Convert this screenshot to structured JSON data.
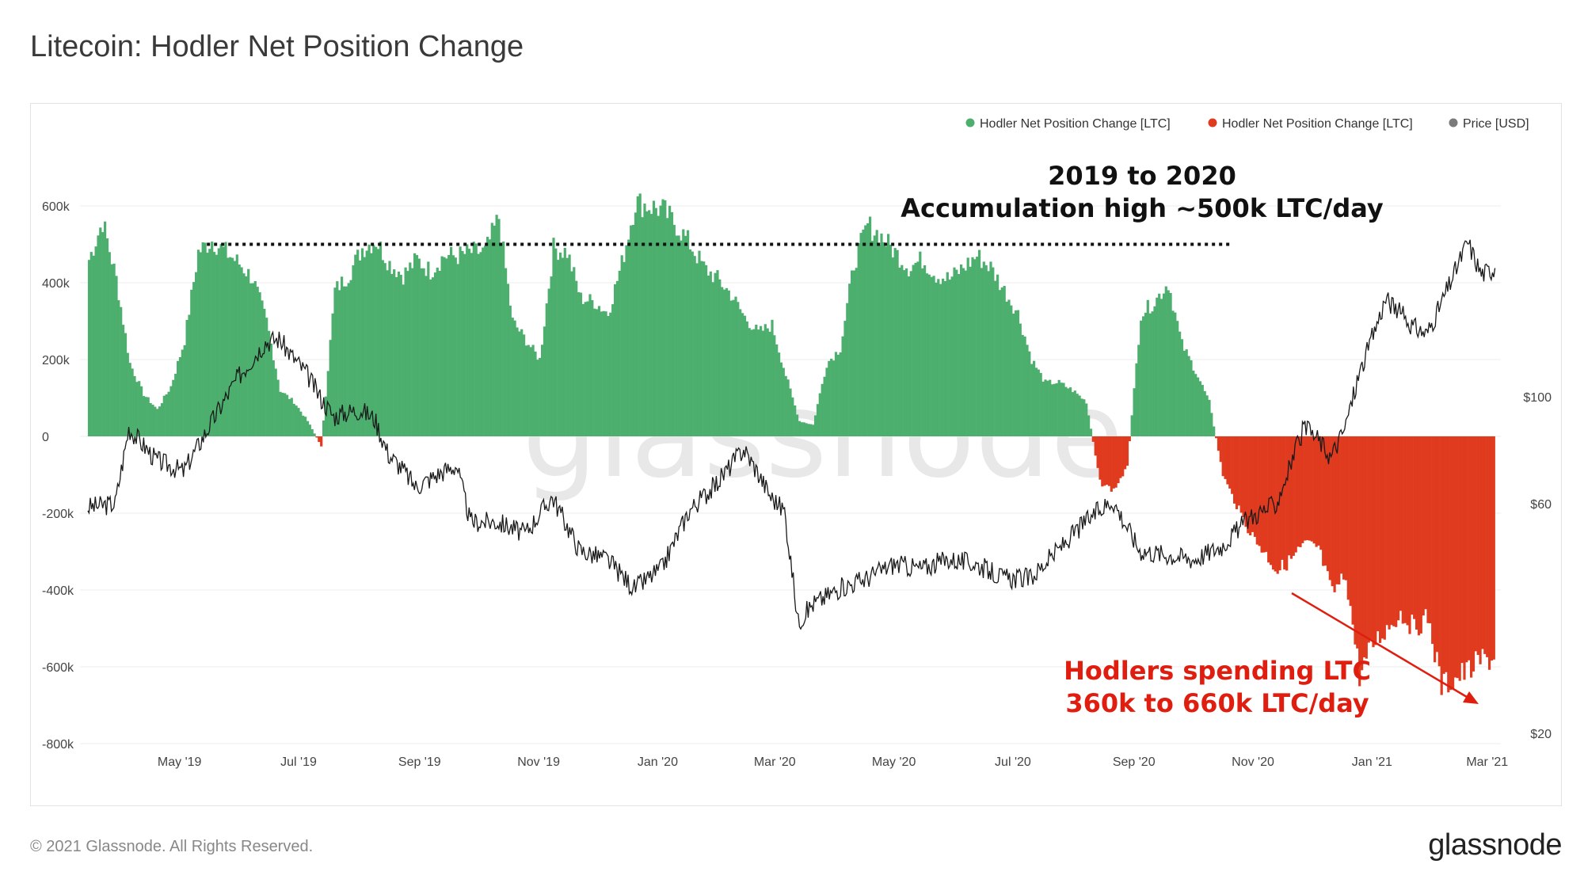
{
  "title": "Litecoin: Hodler Net Position Change",
  "footer": {
    "copyright": "© 2021 Glassnode. All Rights Reserved.",
    "logo": "glassnode"
  },
  "watermark": "glassnode",
  "colors": {
    "positive": "#4caf6e",
    "negative": "#e03a1f",
    "price": "#1a1a1a",
    "grid": "#ececec",
    "annotation_red": "#e01e10"
  },
  "legend": [
    {
      "label": "Hodler Net Position Change [LTC]",
      "color": "#4caf6e"
    },
    {
      "label": "Hodler Net Position Change [LTC]",
      "color": "#e03a1f"
    },
    {
      "label": "Price [USD]",
      "color": "#7a7a7a"
    }
  ],
  "annotations": {
    "accumulation_line1": "2019 to 2020",
    "accumulation_line2": "Accumulation high ~500k LTC/day",
    "spending_line1": "Hodlers spending LTC",
    "spending_line2": "360k to 660k LTC/day"
  },
  "chart_data": {
    "type": "bar",
    "x_ticks": [
      "May '19",
      "Jul '19",
      "Sep '19",
      "Nov '19",
      "Jan '20",
      "Mar '20",
      "May '20",
      "Jul '20",
      "Sep '20",
      "Nov '20",
      "Jan '21",
      "Mar '21"
    ],
    "y_left": {
      "ticks": [
        "600k",
        "400k",
        "200k",
        "0",
        "-200k",
        "-400k",
        "-600k",
        "-800k"
      ],
      "range": [
        -800000,
        600000
      ]
    },
    "y_right": {
      "ticks": [
        "$100",
        "$60",
        "$20"
      ],
      "scale": "log",
      "range": [
        20,
        220
      ]
    },
    "accumulation_high_reference": 500000,
    "series": [
      {
        "name": "Hodler Net Position Change [LTC]",
        "kind": "bar",
        "unit": "LTC",
        "points": [
          [
            "2019-03-15",
            460000
          ],
          [
            "2019-03-22",
            560000
          ],
          [
            "2019-03-29",
            410000
          ],
          [
            "2019-04-05",
            190000
          ],
          [
            "2019-04-12",
            110000
          ],
          [
            "2019-04-19",
            70000
          ],
          [
            "2019-04-26",
            130000
          ],
          [
            "2019-05-03",
            250000
          ],
          [
            "2019-05-10",
            480000
          ],
          [
            "2019-05-17",
            510000
          ],
          [
            "2019-05-24",
            480000
          ],
          [
            "2019-05-31",
            450000
          ],
          [
            "2019-06-07",
            410000
          ],
          [
            "2019-06-14",
            300000
          ],
          [
            "2019-06-21",
            120000
          ],
          [
            "2019-06-28",
            90000
          ],
          [
            "2019-07-05",
            40000
          ],
          [
            "2019-07-12",
            -25000
          ],
          [
            "2019-07-19",
            380000
          ],
          [
            "2019-07-26",
            420000
          ],
          [
            "2019-08-02",
            490000
          ],
          [
            "2019-08-09",
            510000
          ],
          [
            "2019-08-16",
            450000
          ],
          [
            "2019-08-23",
            420000
          ],
          [
            "2019-08-30",
            460000
          ],
          [
            "2019-09-06",
            430000
          ],
          [
            "2019-09-13",
            470000
          ],
          [
            "2019-09-20",
            470000
          ],
          [
            "2019-09-27",
            480000
          ],
          [
            "2019-10-04",
            480000
          ],
          [
            "2019-10-11",
            570000
          ],
          [
            "2019-10-18",
            300000
          ],
          [
            "2019-10-25",
            250000
          ],
          [
            "2019-11-01",
            200000
          ],
          [
            "2019-11-08",
            490000
          ],
          [
            "2019-11-15",
            480000
          ],
          [
            "2019-11-22",
            360000
          ],
          [
            "2019-11-29",
            350000
          ],
          [
            "2019-12-06",
            320000
          ],
          [
            "2019-12-13",
            450000
          ],
          [
            "2019-12-20",
            610000
          ],
          [
            "2019-12-27",
            600000
          ],
          [
            "2020-01-03",
            590000
          ],
          [
            "2020-01-10",
            550000
          ],
          [
            "2020-01-17",
            500000
          ],
          [
            "2020-01-24",
            440000
          ],
          [
            "2020-01-31",
            410000
          ],
          [
            "2020-02-07",
            370000
          ],
          [
            "2020-02-14",
            310000
          ],
          [
            "2020-02-21",
            270000
          ],
          [
            "2020-02-28",
            290000
          ],
          [
            "2020-03-06",
            160000
          ],
          [
            "2020-03-13",
            40000
          ],
          [
            "2020-03-20",
            30000
          ],
          [
            "2020-03-27",
            190000
          ],
          [
            "2020-04-03",
            230000
          ],
          [
            "2020-04-10",
            450000
          ],
          [
            "2020-04-17",
            550000
          ],
          [
            "2020-04-24",
            520000
          ],
          [
            "2020-05-01",
            480000
          ],
          [
            "2020-05-08",
            440000
          ],
          [
            "2020-05-15",
            460000
          ],
          [
            "2020-05-22",
            420000
          ],
          [
            "2020-05-29",
            410000
          ],
          [
            "2020-06-05",
            440000
          ],
          [
            "2020-06-12",
            470000
          ],
          [
            "2020-06-19",
            440000
          ],
          [
            "2020-06-26",
            380000
          ],
          [
            "2020-07-03",
            320000
          ],
          [
            "2020-07-10",
            200000
          ],
          [
            "2020-07-17",
            140000
          ],
          [
            "2020-07-24",
            140000
          ],
          [
            "2020-07-31",
            120000
          ],
          [
            "2020-08-07",
            90000
          ],
          [
            "2020-08-14",
            -120000
          ],
          [
            "2020-08-21",
            -140000
          ],
          [
            "2020-08-28",
            -80000
          ],
          [
            "2020-09-04",
            320000
          ],
          [
            "2020-09-11",
            350000
          ],
          [
            "2020-09-18",
            400000
          ],
          [
            "2020-09-25",
            240000
          ],
          [
            "2020-10-02",
            170000
          ],
          [
            "2020-10-09",
            90000
          ],
          [
            "2020-10-16",
            -100000
          ],
          [
            "2020-10-23",
            -180000
          ],
          [
            "2020-10-30",
            -250000
          ],
          [
            "2020-11-06",
            -300000
          ],
          [
            "2020-11-13",
            -350000
          ],
          [
            "2020-11-20",
            -320000
          ],
          [
            "2020-11-27",
            -280000
          ],
          [
            "2020-12-04",
            -290000
          ],
          [
            "2020-12-11",
            -410000
          ],
          [
            "2020-12-18",
            -360000
          ],
          [
            "2020-12-25",
            -620000
          ],
          [
            "2021-01-01",
            -540000
          ],
          [
            "2021-01-08",
            -500000
          ],
          [
            "2021-01-15",
            -460000
          ],
          [
            "2021-01-22",
            -500000
          ],
          [
            "2021-01-29",
            -470000
          ],
          [
            "2021-02-05",
            -650000
          ],
          [
            "2021-02-12",
            -630000
          ],
          [
            "2021-02-19",
            -610000
          ],
          [
            "2021-02-26",
            -580000
          ]
        ]
      },
      {
        "name": "Price [USD]",
        "kind": "line",
        "unit": "USD",
        "points": [
          [
            "2019-03-15",
            59
          ],
          [
            "2019-03-29",
            60
          ],
          [
            "2019-04-05",
            86
          ],
          [
            "2019-04-19",
            74
          ],
          [
            "2019-05-03",
            70
          ],
          [
            "2019-05-17",
            88
          ],
          [
            "2019-05-31",
            110
          ],
          [
            "2019-06-14",
            130
          ],
          [
            "2019-06-21",
            132
          ],
          [
            "2019-06-28",
            121
          ],
          [
            "2019-07-05",
            112
          ],
          [
            "2019-07-12",
            100
          ],
          [
            "2019-07-19",
            91
          ],
          [
            "2019-07-26",
            93
          ],
          [
            "2019-08-02",
            94
          ],
          [
            "2019-08-09",
            90
          ],
          [
            "2019-08-16",
            76
          ],
          [
            "2019-08-23",
            71
          ],
          [
            "2019-08-30",
            65
          ],
          [
            "2019-09-13",
            70
          ],
          [
            "2019-09-20",
            72
          ],
          [
            "2019-09-27",
            55
          ],
          [
            "2019-10-11",
            55
          ],
          [
            "2019-10-25",
            52
          ],
          [
            "2019-11-08",
            62
          ],
          [
            "2019-11-22",
            48
          ],
          [
            "2019-12-06",
            46
          ],
          [
            "2019-12-20",
            40
          ],
          [
            "2020-01-03",
            44
          ],
          [
            "2020-01-17",
            58
          ],
          [
            "2020-01-31",
            66
          ],
          [
            "2020-02-14",
            78
          ],
          [
            "2020-02-21",
            70
          ],
          [
            "2020-02-28",
            62
          ],
          [
            "2020-03-06",
            58
          ],
          [
            "2020-03-13",
            34
          ],
          [
            "2020-03-20",
            37
          ],
          [
            "2020-04-03",
            40
          ],
          [
            "2020-04-17",
            42
          ],
          [
            "2020-05-01",
            45
          ],
          [
            "2020-05-15",
            44
          ],
          [
            "2020-05-29",
            46
          ],
          [
            "2020-06-12",
            45
          ],
          [
            "2020-06-26",
            42
          ],
          [
            "2020-07-10",
            42
          ],
          [
            "2020-07-24",
            48
          ],
          [
            "2020-08-07",
            55
          ],
          [
            "2020-08-21",
            61
          ],
          [
            "2020-09-04",
            48
          ],
          [
            "2020-09-18",
            47
          ],
          [
            "2020-10-02",
            46
          ],
          [
            "2020-10-16",
            49
          ],
          [
            "2020-10-30",
            56
          ],
          [
            "2020-11-13",
            60
          ],
          [
            "2020-11-27",
            86
          ],
          [
            "2020-12-04",
            82
          ],
          [
            "2020-12-11",
            75
          ],
          [
            "2020-12-18",
            86
          ],
          [
            "2020-12-25",
            110
          ],
          [
            "2021-01-08",
            160
          ],
          [
            "2021-01-15",
            150
          ],
          [
            "2021-01-22",
            140
          ],
          [
            "2021-01-29",
            135
          ],
          [
            "2021-02-05",
            155
          ],
          [
            "2021-02-12",
            180
          ],
          [
            "2021-02-19",
            210
          ],
          [
            "2021-02-26",
            180
          ],
          [
            "2021-03-05",
            185
          ]
        ]
      }
    ]
  }
}
